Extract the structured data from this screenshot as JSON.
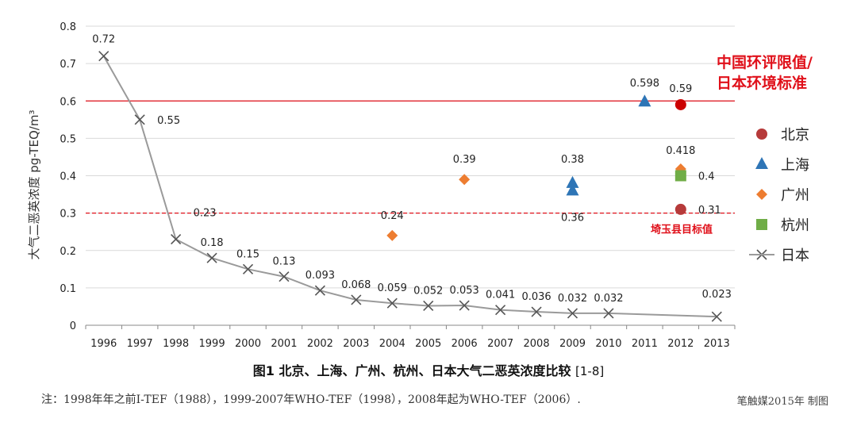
{
  "chart_data": {
    "type": "scatter",
    "title": "图1 北京、上海、广州、杭州、日本大气二恶英浓度比较",
    "title_ref": "[1-8]",
    "ylabel": "大气二恶英浓度 pg-TEQ/m³",
    "ylim": [
      0,
      0.8
    ],
    "yticks": [
      "0",
      "0.1",
      "0.2",
      "0.3",
      "0.4",
      "0.5",
      "0.6",
      "0.7",
      "0.8"
    ],
    "categories": [
      "1996",
      "1997",
      "1998",
      "1999",
      "2000",
      "2001",
      "2002",
      "2003",
      "2004",
      "2005",
      "2006",
      "2007",
      "2008",
      "2009",
      "2010",
      "2011",
      "2012",
      "2013"
    ],
    "reference_lines": [
      {
        "value": 0.6,
        "label_line1": "中国环评限值/",
        "label_line2": "日本环境标准",
        "style": "solid",
        "color": "#e0101a"
      },
      {
        "value": 0.3,
        "label": "埼玉县目标值",
        "style": "dashed",
        "color": "#e0101a"
      }
    ],
    "series": [
      {
        "name": "日本",
        "marker": "x",
        "color": "#555555",
        "line": true,
        "points": [
          {
            "x": "1996",
            "y": 0.72,
            "label": "0.72"
          },
          {
            "x": "1997",
            "y": 0.55,
            "label": "0.55"
          },
          {
            "x": "1998",
            "y": 0.23,
            "label": "0.23"
          },
          {
            "x": "1999",
            "y": 0.18,
            "label": "0.18"
          },
          {
            "x": "2000",
            "y": 0.15,
            "label": "0.15"
          },
          {
            "x": "2001",
            "y": 0.13,
            "label": "0.13"
          },
          {
            "x": "2002",
            "y": 0.093,
            "label": "0.093"
          },
          {
            "x": "2003",
            "y": 0.068,
            "label": "0.068"
          },
          {
            "x": "2004",
            "y": 0.059,
            "label": "0.059"
          },
          {
            "x": "2005",
            "y": 0.052,
            "label": "0.052"
          },
          {
            "x": "2006",
            "y": 0.053,
            "label": "0.053"
          },
          {
            "x": "2007",
            "y": 0.041,
            "label": "0.041"
          },
          {
            "x": "2008",
            "y": 0.036,
            "label": "0.036"
          },
          {
            "x": "2009",
            "y": 0.032,
            "label": "0.032"
          },
          {
            "x": "2010",
            "y": 0.032,
            "label": "0.032"
          },
          {
            "x": "2013",
            "y": 0.023,
            "label": "0.023"
          }
        ]
      },
      {
        "name": "北京",
        "marker": "circle",
        "color": "#b63a3a",
        "points": [
          {
            "x": "2012",
            "y": 0.59,
            "label": "0.59",
            "color": "#cc0000"
          },
          {
            "x": "2012",
            "y": 0.31,
            "label": "0.31"
          }
        ]
      },
      {
        "name": "上海",
        "marker": "triangle",
        "color": "#2e75b6",
        "points": [
          {
            "x": "2009",
            "y": 0.38,
            "label": "0.38"
          },
          {
            "x": "2009",
            "y": 0.36,
            "label": "0.36"
          },
          {
            "x": "2011",
            "y": 0.598,
            "label": "0.598"
          }
        ]
      },
      {
        "name": "广州",
        "marker": "diamond",
        "color": "#ed7d31",
        "points": [
          {
            "x": "2004",
            "y": 0.24,
            "label": "0.24"
          },
          {
            "x": "2006",
            "y": 0.39,
            "label": "0.39"
          },
          {
            "x": "2012",
            "y": 0.418,
            "label": "0.418"
          }
        ]
      },
      {
        "name": "杭州",
        "marker": "square",
        "color": "#70ad47",
        "points": [
          {
            "x": "2012",
            "y": 0.4,
            "label": "0.4"
          }
        ]
      }
    ],
    "legend": {
      "position": "right",
      "entries": [
        {
          "name": "北京",
          "marker": "circle",
          "color": "#b63a3a"
        },
        {
          "name": "上海",
          "marker": "triangle",
          "color": "#2e75b6"
        },
        {
          "name": "广州",
          "marker": "diamond",
          "color": "#ed7d31"
        },
        {
          "name": "杭州",
          "marker": "square",
          "color": "#70ad47"
        },
        {
          "name": "日本",
          "marker": "x",
          "color": "#555555"
        }
      ]
    }
  },
  "note": "注：1998年年之前I-TEF（1988），1999-2007年WHO-TEF（1998），2008年起为WHO-TEF（2006）.",
  "credit": "笔触媒2015年 制图"
}
